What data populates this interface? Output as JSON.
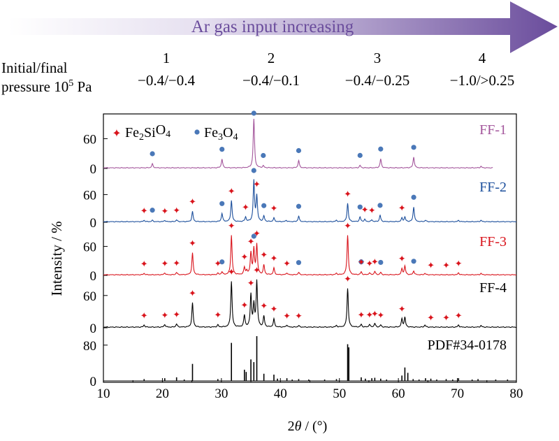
{
  "colors": {
    "arrow_start": "#ffffff",
    "arrow_end": "#6a4c9c",
    "arrow_text": "#6a4c9c",
    "FF-1": "#a3559b",
    "FF-2": "#1c4f9c",
    "FF-3": "#d9141c",
    "FF-4": "#000000",
    "PDF": "#000000",
    "marker_fe3o4": "#4a78b8",
    "marker_fe2sio4": "#d9141c"
  },
  "header": {
    "arrow_label": "Ar gas input increasing",
    "row_label_line1": "Initial/final",
    "row_label_line2": "pressure 10",
    "row_label_sup": "5",
    "row_label_unit": " Pa",
    "conditions": [
      {
        "num": "1",
        "pressure": "−0.4/−0.4"
      },
      {
        "num": "2",
        "pressure": "−0.4/−0.1"
      },
      {
        "num": "3",
        "pressure": "−0.4/−0.25"
      },
      {
        "num": "4",
        "pressure": "−1.0/>0.25"
      }
    ]
  },
  "chart_data": {
    "type": "line",
    "xlabel": "2θ / (°)",
    "ylabel": "Intensity / %",
    "xlim": [
      10,
      80
    ],
    "xticks": [
      10,
      20,
      30,
      40,
      50,
      60,
      70,
      80
    ],
    "legend": [
      {
        "symbol": "✦",
        "label": "Fe2SiO4",
        "marker": "fe2sio4"
      },
      {
        "symbol": "●",
        "label": "Fe3O4",
        "marker": "fe3o4"
      }
    ],
    "panels": [
      {
        "name": "FF-1",
        "ylim": [
          0,
          100
        ],
        "yticks": [
          0,
          60
        ],
        "xrange": [
          10,
          76
        ],
        "peaks": [
          [
            18.3,
            8
          ],
          [
            30.1,
            18
          ],
          [
            35.5,
            100
          ],
          [
            37.1,
            4
          ],
          [
            43.1,
            15
          ],
          [
            53.5,
            5
          ],
          [
            57.0,
            18
          ],
          [
            62.6,
            22
          ],
          [
            74.0,
            3
          ]
        ],
        "markers": {
          "fe3o4": [
            18.3,
            30.1,
            35.5,
            37.1,
            43.1,
            53.5,
            57.0,
            62.6
          ]
        }
      },
      {
        "name": "FF-2",
        "ylim": [
          0,
          100
        ],
        "yticks": [
          0,
          60
        ],
        "xrange": [
          10,
          80
        ],
        "peaks": [
          [
            16.9,
            3
          ],
          [
            18.3,
            3
          ],
          [
            20.4,
            3
          ],
          [
            22.4,
            4
          ],
          [
            25.1,
            22
          ],
          [
            30.1,
            18
          ],
          [
            31.7,
            46
          ],
          [
            34.1,
            10
          ],
          [
            35.5,
            88
          ],
          [
            36.0,
            55
          ],
          [
            37.2,
            12
          ],
          [
            38.9,
            8
          ],
          [
            41.0,
            3
          ],
          [
            43.1,
            12
          ],
          [
            49.5,
            3
          ],
          [
            51.4,
            40
          ],
          [
            53.5,
            10
          ],
          [
            54.3,
            5
          ],
          [
            55.5,
            4
          ],
          [
            56.9,
            14
          ],
          [
            60.6,
            8
          ],
          [
            61.1,
            10
          ],
          [
            62.6,
            32
          ],
          [
            64.6,
            3
          ],
          [
            70.2,
            3
          ],
          [
            74.0,
            3
          ]
        ],
        "markers": {
          "fe2sio4": [
            16.9,
            20.4,
            22.4,
            25.1,
            31.7,
            34.1,
            36.0,
            38.9,
            51.4,
            54.3,
            55.5,
            60.6
          ],
          "fe3o4": [
            18.3,
            30.1,
            35.5,
            37.2,
            43.1,
            53.5,
            56.9,
            62.6
          ]
        }
      },
      {
        "name": "FF-3",
        "ylim": [
          0,
          100
        ],
        "yticks": [
          0,
          60
        ],
        "xrange": [
          10,
          80
        ],
        "peaks": [
          [
            16.9,
            3
          ],
          [
            20.4,
            4
          ],
          [
            22.4,
            5
          ],
          [
            25.1,
            45
          ],
          [
            29.4,
            3
          ],
          [
            30.1,
            6
          ],
          [
            31.7,
            82
          ],
          [
            33.9,
            15
          ],
          [
            34.3,
            8
          ],
          [
            35.0,
            45
          ],
          [
            35.5,
            52
          ],
          [
            36.0,
            62
          ],
          [
            37.2,
            20
          ],
          [
            38.9,
            14
          ],
          [
            41.1,
            4
          ],
          [
            43.1,
            5
          ],
          [
            49.5,
            3
          ],
          [
            51.4,
            82
          ],
          [
            53.7,
            6
          ],
          [
            55.1,
            4
          ],
          [
            56.0,
            7
          ],
          [
            57.0,
            5
          ],
          [
            60.6,
            12
          ],
          [
            61.1,
            18
          ],
          [
            62.6,
            8
          ],
          [
            64.5,
            3
          ],
          [
            70.2,
            4
          ],
          [
            74.0,
            3
          ]
        ],
        "markers": {
          "fe2sio4": [
            16.9,
            20.4,
            22.4,
            25.1,
            29.4,
            31.7,
            33.9,
            35.0,
            36.0,
            37.2,
            38.9,
            41.1,
            51.4,
            53.7,
            55.1,
            56.0,
            60.6,
            65.5,
            68.1,
            70.2
          ],
          "fe3o4": [
            30.1,
            35.5,
            43.1,
            53.7,
            57.0,
            62.6
          ]
        }
      },
      {
        "name": "FF-4",
        "ylim": [
          0,
          100
        ],
        "yticks": [
          0,
          60
        ],
        "xrange": [
          10,
          80
        ],
        "peaks": [
          [
            16.9,
            4
          ],
          [
            20.4,
            5
          ],
          [
            22.4,
            6
          ],
          [
            25.1,
            45
          ],
          [
            29.4,
            4
          ],
          [
            31.7,
            85
          ],
          [
            33.9,
            22
          ],
          [
            35.0,
            60
          ],
          [
            35.5,
            40
          ],
          [
            36.0,
            85
          ],
          [
            37.2,
            20
          ],
          [
            38.9,
            15
          ],
          [
            41.1,
            4
          ],
          [
            43.1,
            3
          ],
          [
            49.5,
            3
          ],
          [
            51.4,
            72
          ],
          [
            53.7,
            5
          ],
          [
            55.1,
            5
          ],
          [
            56.0,
            7
          ],
          [
            57.0,
            4
          ],
          [
            60.6,
            15
          ],
          [
            61.1,
            18
          ],
          [
            64.5,
            4
          ],
          [
            70.2,
            4
          ],
          [
            74.0,
            3
          ]
        ],
        "markers": {
          "fe2sio4": [
            16.9,
            20.4,
            22.4,
            25.1,
            29.4,
            31.7,
            33.9,
            35.0,
            36.0,
            37.2,
            38.9,
            41.1,
            43.1,
            51.4,
            53.7,
            55.1,
            56.0,
            57.0,
            60.6,
            65.5,
            68.1,
            70.2
          ]
        }
      },
      {
        "name": "PDF#34-0178",
        "ylim": [
          0,
          100
        ],
        "yticks": [
          0,
          80
        ],
        "xrange": [
          10,
          80
        ],
        "sticks": [
          [
            16.9,
            4
          ],
          [
            20.4,
            6
          ],
          [
            22.4,
            8
          ],
          [
            23.7,
            3
          ],
          [
            25.1,
            38
          ],
          [
            29.4,
            4
          ],
          [
            31.7,
            85
          ],
          [
            33.9,
            25
          ],
          [
            34.2,
            20
          ],
          [
            35.0,
            48
          ],
          [
            35.5,
            42
          ],
          [
            36.0,
            100
          ],
          [
            37.2,
            16
          ],
          [
            38.9,
            14
          ],
          [
            39.5,
            5
          ],
          [
            41.1,
            6
          ],
          [
            42.0,
            3
          ],
          [
            43.1,
            4
          ],
          [
            44.8,
            3
          ],
          [
            47.5,
            3
          ],
          [
            49.5,
            4
          ],
          [
            51.4,
            82
          ],
          [
            51.6,
            75
          ],
          [
            53.7,
            8
          ],
          [
            54.4,
            5
          ],
          [
            55.5,
            6
          ],
          [
            56.0,
            7
          ],
          [
            57.0,
            5
          ],
          [
            58.0,
            3
          ],
          [
            60.6,
            12
          ],
          [
            61.1,
            30
          ],
          [
            61.6,
            18
          ],
          [
            62.5,
            4
          ],
          [
            63.5,
            3
          ],
          [
            64.6,
            6
          ],
          [
            65.5,
            5
          ],
          [
            66.5,
            3
          ],
          [
            68.1,
            4
          ],
          [
            69.2,
            3
          ],
          [
            70.2,
            6
          ],
          [
            72.5,
            3
          ],
          [
            73.5,
            4
          ],
          [
            76.5,
            3
          ],
          [
            78.5,
            3
          ]
        ]
      }
    ]
  }
}
